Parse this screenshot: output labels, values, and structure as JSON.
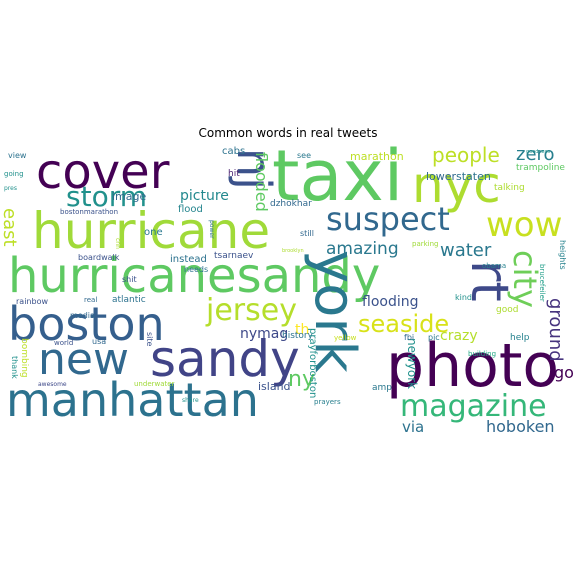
{
  "title": "Common words in real tweets",
  "words": [
    {
      "text": "taxi",
      "color": "#5ec962"
    },
    {
      "text": "cover",
      "color": "#440154"
    },
    {
      "text": "nj",
      "color": "#3b528b"
    },
    {
      "text": "nyc",
      "color": "#addc30"
    },
    {
      "text": "hurricane",
      "color": "#a0da39"
    },
    {
      "text": "hurricanesandy",
      "color": "#5ec962"
    },
    {
      "text": "suspect",
      "color": "#31688e"
    },
    {
      "text": "wow",
      "color": "#c8e020"
    },
    {
      "text": "storm",
      "color": "#21918c"
    },
    {
      "text": "boston",
      "color": "#355f8d"
    },
    {
      "text": "rt",
      "color": "#3e4989"
    },
    {
      "text": "city",
      "color": "#6ece58"
    },
    {
      "text": "jersey",
      "color": "#b5de2b"
    },
    {
      "text": "photo",
      "color": "#440154"
    },
    {
      "text": "new",
      "color": "#31688e"
    },
    {
      "text": "sandy",
      "color": "#414487"
    },
    {
      "text": "york",
      "color": "#2a788e"
    },
    {
      "text": "manhattan",
      "color": "#2c728e"
    },
    {
      "text": "magazine",
      "color": "#35b779"
    },
    {
      "text": "seaside",
      "color": "#d8e219"
    },
    {
      "text": "people",
      "color": "#bddf26"
    },
    {
      "text": "zero",
      "color": "#277f8e"
    },
    {
      "text": "east",
      "color": "#bddf26"
    },
    {
      "text": "amazing",
      "color": "#2a788e"
    },
    {
      "text": "water",
      "color": "#2a788e"
    },
    {
      "text": "flooding",
      "color": "#3b528b"
    },
    {
      "text": "crazy",
      "color": "#b5de2b"
    },
    {
      "text": "ground",
      "color": "#46337e"
    },
    {
      "text": "nymag",
      "color": "#3e4989"
    },
    {
      "text": "th",
      "color": "#fde725"
    },
    {
      "text": "ny",
      "color": "#5ec962"
    },
    {
      "text": "via",
      "color": "#2c728e"
    },
    {
      "text": "hoboken",
      "color": "#31688e"
    },
    {
      "text": "go",
      "color": "#440154"
    },
    {
      "text": "flooded",
      "color": "#5ec962"
    },
    {
      "text": "picture",
      "color": "#23898e"
    },
    {
      "text": "image",
      "color": "#31688e"
    },
    {
      "text": "marathon",
      "color": "#bddf26"
    },
    {
      "text": "lower",
      "color": "#31688e"
    },
    {
      "text": "staten",
      "color": "#2c728e"
    },
    {
      "text": "talking",
      "color": "#addc30"
    },
    {
      "text": "trampoline",
      "color": "#5ec962"
    },
    {
      "text": "cabs",
      "color": "#2c728e"
    },
    {
      "text": "hit",
      "color": "#481f70"
    },
    {
      "text": "flood",
      "color": "#25858e"
    },
    {
      "text": "dzhokhar",
      "color": "#31688e"
    },
    {
      "text": "see",
      "color": "#2a788e"
    },
    {
      "text": "still",
      "color": "#31688e"
    },
    {
      "text": "parking",
      "color": "#a0da39"
    },
    {
      "text": "heights",
      "color": "#26828e"
    },
    {
      "text": "obama",
      "color": "#26828e"
    },
    {
      "text": "kind",
      "color": "#21918c"
    },
    {
      "text": "good",
      "color": "#addc30"
    },
    {
      "text": "help",
      "color": "#26828e"
    },
    {
      "text": "brucefeiler",
      "color": "#1f9e89"
    },
    {
      "text": "newyork",
      "color": "#21918c"
    },
    {
      "text": "history",
      "color": "#2c728e"
    },
    {
      "text": "yellow",
      "color": "#c8e020"
    },
    {
      "text": "fbi",
      "color": "#31688e"
    },
    {
      "text": "pic",
      "color": "#2a788e"
    },
    {
      "text": "building",
      "color": "#22a884"
    },
    {
      "text": "prayforboston",
      "color": "#21918c"
    },
    {
      "text": "amp",
      "color": "#2a788e"
    },
    {
      "text": "prayers",
      "color": "#277f8e"
    },
    {
      "text": "share",
      "color": "#21918c"
    },
    {
      "text": "island",
      "color": "#3b528b"
    },
    {
      "text": "underwater",
      "color": "#a0da39"
    },
    {
      "text": "awesome",
      "color": "#3e4989"
    },
    {
      "text": "thank",
      "color": "#21918c"
    },
    {
      "text": "bombing",
      "color": "#bddf26"
    },
    {
      "text": "site",
      "color": "#3b528b"
    },
    {
      "text": "world",
      "color": "#3b528b"
    },
    {
      "text": "media",
      "color": "#31688e"
    },
    {
      "text": "rainbow",
      "color": "#3b528b"
    },
    {
      "text": "real",
      "color": "#31688e"
    },
    {
      "text": "atlantic",
      "color": "#2c728e"
    },
    {
      "text": "usa",
      "color": "#31688e"
    },
    {
      "text": "boardwalk",
      "color": "#3b528b"
    },
    {
      "text": "instead",
      "color": "#2c728e"
    },
    {
      "text": "tsarnaev",
      "color": "#3b528b"
    },
    {
      "text": "needs",
      "color": "#2c728e"
    },
    {
      "text": "shit",
      "color": "#3b528b"
    },
    {
      "text": "one",
      "color": "#2a788e"
    },
    {
      "text": "power",
      "color": "#2c728e"
    },
    {
      "text": "cnn",
      "color": "#addc30"
    },
    {
      "text": "bostonmarathon",
      "color": "#3b528b"
    },
    {
      "text": "view",
      "color": "#2c728e"
    },
    {
      "text": "going",
      "color": "#21918c"
    },
    {
      "text": "pres",
      "color": "#21918c"
    },
    {
      "text": "goodness",
      "color": "#21918c"
    },
    {
      "text": "brooklyn",
      "color": "#addc30"
    }
  ]
}
